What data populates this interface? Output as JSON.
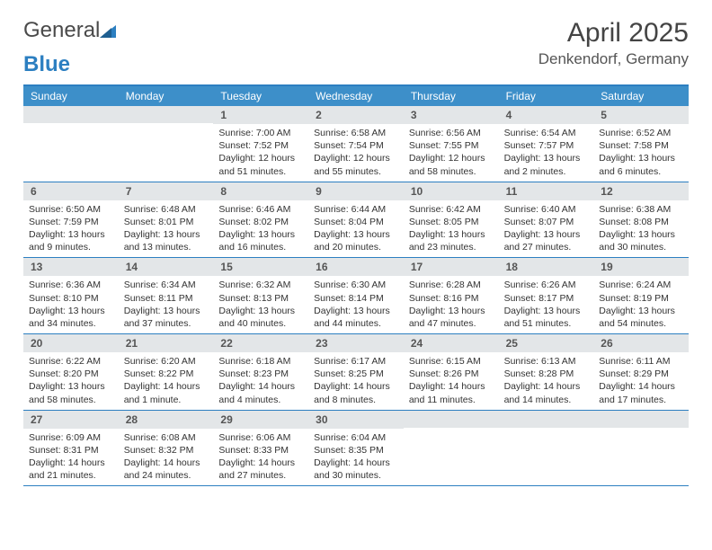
{
  "logo": {
    "text1": "General",
    "text2": "Blue"
  },
  "title": "April 2025",
  "location": "Denkendorf, Germany",
  "day_names": [
    "Sunday",
    "Monday",
    "Tuesday",
    "Wednesday",
    "Thursday",
    "Friday",
    "Saturday"
  ],
  "colors": {
    "accent": "#2c7fc1",
    "header_bg": "#3d8fc9",
    "daynum_bg": "#e3e6e8",
    "text": "#333333",
    "title_text": "#444444"
  },
  "weeks": [
    [
      null,
      null,
      {
        "n": "1",
        "sunrise": "Sunrise: 7:00 AM",
        "sunset": "Sunset: 7:52 PM",
        "daylight": "Daylight: 12 hours and 51 minutes."
      },
      {
        "n": "2",
        "sunrise": "Sunrise: 6:58 AM",
        "sunset": "Sunset: 7:54 PM",
        "daylight": "Daylight: 12 hours and 55 minutes."
      },
      {
        "n": "3",
        "sunrise": "Sunrise: 6:56 AM",
        "sunset": "Sunset: 7:55 PM",
        "daylight": "Daylight: 12 hours and 58 minutes."
      },
      {
        "n": "4",
        "sunrise": "Sunrise: 6:54 AM",
        "sunset": "Sunset: 7:57 PM",
        "daylight": "Daylight: 13 hours and 2 minutes."
      },
      {
        "n": "5",
        "sunrise": "Sunrise: 6:52 AM",
        "sunset": "Sunset: 7:58 PM",
        "daylight": "Daylight: 13 hours and 6 minutes."
      }
    ],
    [
      {
        "n": "6",
        "sunrise": "Sunrise: 6:50 AM",
        "sunset": "Sunset: 7:59 PM",
        "daylight": "Daylight: 13 hours and 9 minutes."
      },
      {
        "n": "7",
        "sunrise": "Sunrise: 6:48 AM",
        "sunset": "Sunset: 8:01 PM",
        "daylight": "Daylight: 13 hours and 13 minutes."
      },
      {
        "n": "8",
        "sunrise": "Sunrise: 6:46 AM",
        "sunset": "Sunset: 8:02 PM",
        "daylight": "Daylight: 13 hours and 16 minutes."
      },
      {
        "n": "9",
        "sunrise": "Sunrise: 6:44 AM",
        "sunset": "Sunset: 8:04 PM",
        "daylight": "Daylight: 13 hours and 20 minutes."
      },
      {
        "n": "10",
        "sunrise": "Sunrise: 6:42 AM",
        "sunset": "Sunset: 8:05 PM",
        "daylight": "Daylight: 13 hours and 23 minutes."
      },
      {
        "n": "11",
        "sunrise": "Sunrise: 6:40 AM",
        "sunset": "Sunset: 8:07 PM",
        "daylight": "Daylight: 13 hours and 27 minutes."
      },
      {
        "n": "12",
        "sunrise": "Sunrise: 6:38 AM",
        "sunset": "Sunset: 8:08 PM",
        "daylight": "Daylight: 13 hours and 30 minutes."
      }
    ],
    [
      {
        "n": "13",
        "sunrise": "Sunrise: 6:36 AM",
        "sunset": "Sunset: 8:10 PM",
        "daylight": "Daylight: 13 hours and 34 minutes."
      },
      {
        "n": "14",
        "sunrise": "Sunrise: 6:34 AM",
        "sunset": "Sunset: 8:11 PM",
        "daylight": "Daylight: 13 hours and 37 minutes."
      },
      {
        "n": "15",
        "sunrise": "Sunrise: 6:32 AM",
        "sunset": "Sunset: 8:13 PM",
        "daylight": "Daylight: 13 hours and 40 minutes."
      },
      {
        "n": "16",
        "sunrise": "Sunrise: 6:30 AM",
        "sunset": "Sunset: 8:14 PM",
        "daylight": "Daylight: 13 hours and 44 minutes."
      },
      {
        "n": "17",
        "sunrise": "Sunrise: 6:28 AM",
        "sunset": "Sunset: 8:16 PM",
        "daylight": "Daylight: 13 hours and 47 minutes."
      },
      {
        "n": "18",
        "sunrise": "Sunrise: 6:26 AM",
        "sunset": "Sunset: 8:17 PM",
        "daylight": "Daylight: 13 hours and 51 minutes."
      },
      {
        "n": "19",
        "sunrise": "Sunrise: 6:24 AM",
        "sunset": "Sunset: 8:19 PM",
        "daylight": "Daylight: 13 hours and 54 minutes."
      }
    ],
    [
      {
        "n": "20",
        "sunrise": "Sunrise: 6:22 AM",
        "sunset": "Sunset: 8:20 PM",
        "daylight": "Daylight: 13 hours and 58 minutes."
      },
      {
        "n": "21",
        "sunrise": "Sunrise: 6:20 AM",
        "sunset": "Sunset: 8:22 PM",
        "daylight": "Daylight: 14 hours and 1 minute."
      },
      {
        "n": "22",
        "sunrise": "Sunrise: 6:18 AM",
        "sunset": "Sunset: 8:23 PM",
        "daylight": "Daylight: 14 hours and 4 minutes."
      },
      {
        "n": "23",
        "sunrise": "Sunrise: 6:17 AM",
        "sunset": "Sunset: 8:25 PM",
        "daylight": "Daylight: 14 hours and 8 minutes."
      },
      {
        "n": "24",
        "sunrise": "Sunrise: 6:15 AM",
        "sunset": "Sunset: 8:26 PM",
        "daylight": "Daylight: 14 hours and 11 minutes."
      },
      {
        "n": "25",
        "sunrise": "Sunrise: 6:13 AM",
        "sunset": "Sunset: 8:28 PM",
        "daylight": "Daylight: 14 hours and 14 minutes."
      },
      {
        "n": "26",
        "sunrise": "Sunrise: 6:11 AM",
        "sunset": "Sunset: 8:29 PM",
        "daylight": "Daylight: 14 hours and 17 minutes."
      }
    ],
    [
      {
        "n": "27",
        "sunrise": "Sunrise: 6:09 AM",
        "sunset": "Sunset: 8:31 PM",
        "daylight": "Daylight: 14 hours and 21 minutes."
      },
      {
        "n": "28",
        "sunrise": "Sunrise: 6:08 AM",
        "sunset": "Sunset: 8:32 PM",
        "daylight": "Daylight: 14 hours and 24 minutes."
      },
      {
        "n": "29",
        "sunrise": "Sunrise: 6:06 AM",
        "sunset": "Sunset: 8:33 PM",
        "daylight": "Daylight: 14 hours and 27 minutes."
      },
      {
        "n": "30",
        "sunrise": "Sunrise: 6:04 AM",
        "sunset": "Sunset: 8:35 PM",
        "daylight": "Daylight: 14 hours and 30 minutes."
      },
      null,
      null,
      null
    ]
  ]
}
